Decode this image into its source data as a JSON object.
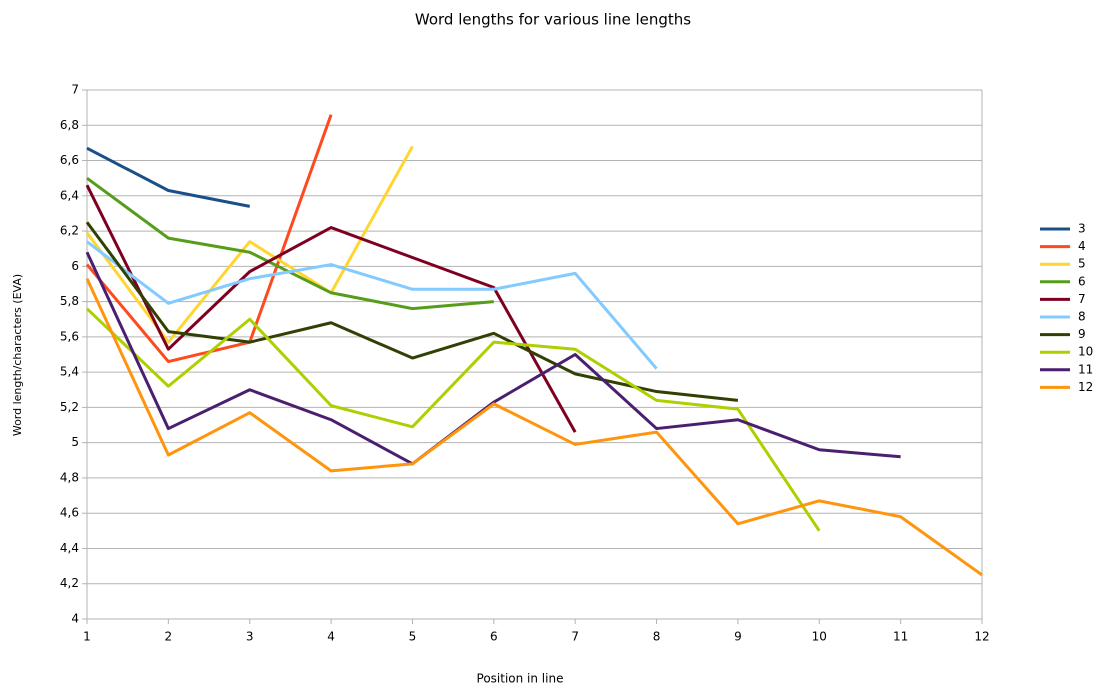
{
  "chart_data": {
    "type": "line",
    "title": "Word lengths for various line lengths",
    "x_label": "Position in line",
    "y_label": "Word length/characters (EVA)",
    "x": [
      1,
      2,
      3,
      4,
      5,
      6,
      7,
      8,
      9,
      10,
      11,
      12
    ],
    "xlim": [
      1,
      12
    ],
    "xticks": [
      1,
      2,
      3,
      4,
      5,
      6,
      7,
      8,
      9,
      10,
      11,
      12
    ],
    "ylim": [
      4,
      7
    ],
    "yticks": [
      4,
      {
        "value": 4.2,
        "label": "4,2"
      },
      {
        "value": 4.4,
        "label": "4,4"
      },
      {
        "value": 4.6,
        "label": "4,6"
      },
      {
        "value": 4.8,
        "label": "4,8"
      },
      5,
      {
        "value": 5.2,
        "label": "5,2"
      },
      {
        "value": 5.4,
        "label": "5,4"
      },
      {
        "value": 5.6,
        "label": "5,6"
      },
      {
        "value": 5.8,
        "label": "5,8"
      },
      6,
      {
        "value": 6.2,
        "label": "6,2"
      },
      {
        "value": 6.4,
        "label": "6,4"
      },
      {
        "value": 6.6,
        "label": "6,6"
      },
      {
        "value": 6.8,
        "label": "6,8"
      },
      7
    ],
    "grid": true,
    "legend": "right",
    "series": [
      {
        "name": "3",
        "color": "#1a4f8a",
        "values": [
          6.67,
          6.43,
          6.34,
          null,
          null,
          null,
          null,
          null,
          null,
          null,
          null,
          null
        ]
      },
      {
        "name": "4",
        "color": "#ff4a1f",
        "values": [
          6.01,
          5.46,
          5.57,
          6.86,
          null,
          null,
          null,
          null,
          null,
          null,
          null,
          null
        ]
      },
      {
        "name": "5",
        "color": "#ffd630",
        "values": [
          6.19,
          5.57,
          6.14,
          5.85,
          6.68,
          null,
          null,
          null,
          null,
          null,
          null,
          null
        ]
      },
      {
        "name": "6",
        "color": "#579d1c",
        "values": [
          6.5,
          6.16,
          6.08,
          5.85,
          5.76,
          5.8,
          null,
          null,
          null,
          null,
          null,
          null
        ]
      },
      {
        "name": "7",
        "color": "#7e0021",
        "values": [
          6.46,
          5.53,
          5.97,
          6.22,
          6.05,
          5.88,
          5.06,
          null,
          null,
          null,
          null,
          null
        ]
      },
      {
        "name": "8",
        "color": "#83caff",
        "values": [
          6.14,
          5.79,
          5.93,
          6.01,
          5.87,
          5.87,
          5.96,
          5.42,
          null,
          null,
          null,
          null
        ]
      },
      {
        "name": "9",
        "color": "#314004",
        "values": [
          6.25,
          5.63,
          5.57,
          5.68,
          5.48,
          5.62,
          5.39,
          5.29,
          5.24,
          null,
          null,
          null
        ]
      },
      {
        "name": "10",
        "color": "#aecf00",
        "values": [
          5.76,
          5.32,
          5.7,
          5.21,
          5.09,
          5.57,
          5.53,
          5.24,
          5.19,
          4.5,
          null,
          null
        ]
      },
      {
        "name": "11",
        "color": "#4b1f6f",
        "values": [
          6.08,
          5.08,
          5.3,
          5.13,
          4.88,
          5.23,
          5.5,
          5.08,
          5.13,
          4.96,
          4.92,
          null
        ]
      },
      {
        "name": "12",
        "color": "#ff950e",
        "values": [
          5.93,
          4.93,
          5.17,
          4.84,
          4.88,
          5.22,
          4.99,
          5.06,
          4.54,
          4.67,
          4.58,
          4.25
        ]
      }
    ]
  }
}
